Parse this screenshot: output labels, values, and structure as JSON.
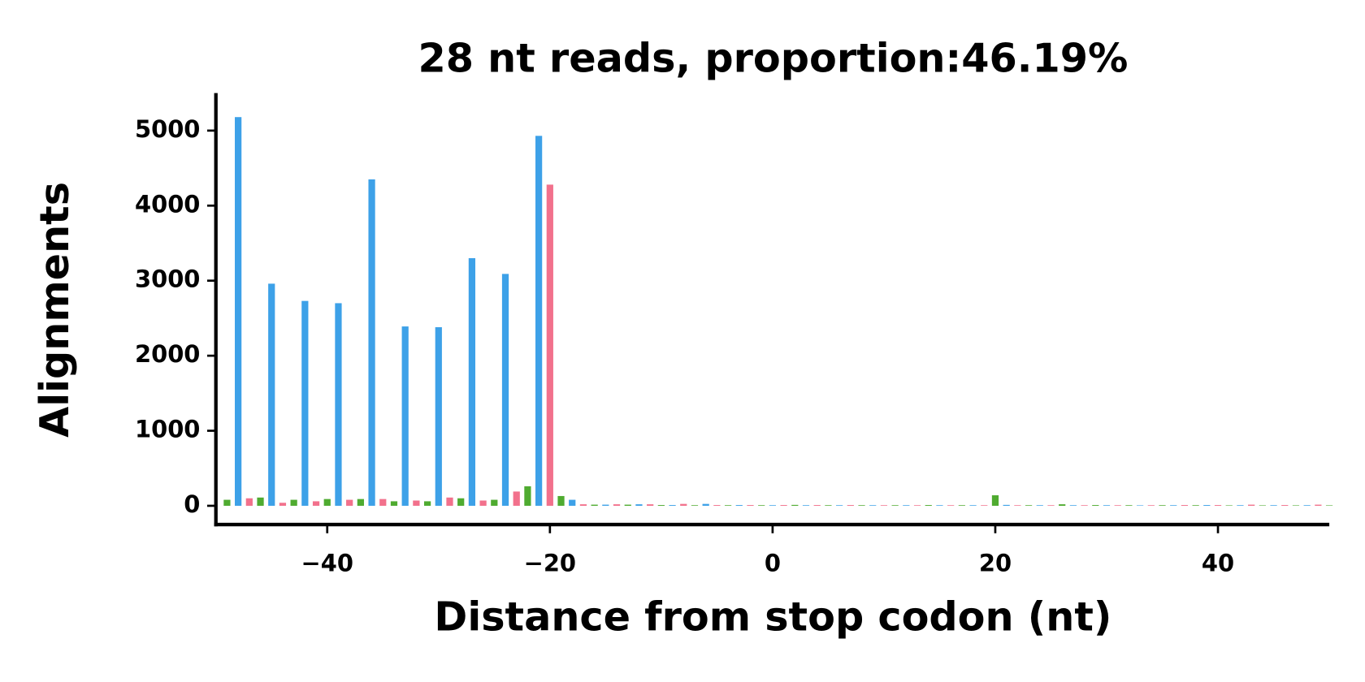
{
  "chart_data": {
    "type": "bar",
    "title": "28 nt reads, proportion:46.19%",
    "xlabel": "Distance from stop codon (nt)",
    "ylabel": "Alignments",
    "xlim": [
      -50,
      50
    ],
    "ylim": [
      -250,
      5500
    ],
    "xticks": [
      {
        "value": -40,
        "label": "−40"
      },
      {
        "value": -20,
        "label": "−20"
      },
      0,
      20,
      40
    ],
    "yticks": [
      0,
      1000,
      2000,
      3000,
      4000,
      5000
    ],
    "grid": false,
    "series": [
      {
        "color": "#3da1e8",
        "x": [
          -48,
          -45,
          -42,
          -39,
          -36,
          -33,
          -30,
          -27,
          -24,
          -21,
          -18,
          -15,
          -12,
          -9,
          -6,
          -3,
          0,
          3,
          6,
          9,
          12,
          15,
          18,
          21,
          24,
          27,
          30,
          33,
          36,
          39,
          42,
          45,
          48
        ],
        "values": [
          5180,
          2960,
          2730,
          2700,
          4350,
          2390,
          2380,
          3300,
          3090,
          4930,
          80,
          15,
          20,
          10,
          25,
          10,
          8,
          8,
          8,
          8,
          8,
          8,
          8,
          12,
          8,
          8,
          8,
          6,
          8,
          10,
          8,
          8,
          8
        ]
      },
      {
        "color": "#f2718c",
        "x": [
          -47,
          -44,
          -41,
          -38,
          -35,
          -32,
          -29,
          -26,
          -23,
          -20,
          -17,
          -14,
          -11,
          -8,
          -5,
          -2,
          1,
          4,
          7,
          10,
          13,
          16,
          19,
          22,
          25,
          28,
          31,
          34,
          37,
          40,
          43,
          46,
          49
        ],
        "values": [
          100,
          40,
          60,
          80,
          90,
          70,
          110,
          70,
          190,
          4280,
          20,
          20,
          20,
          25,
          10,
          10,
          10,
          10,
          10,
          8,
          8,
          8,
          8,
          8,
          8,
          8,
          8,
          8,
          10,
          10,
          15,
          10,
          15
        ]
      },
      {
        "color": "#4fab30",
        "x": [
          -49,
          -46,
          -43,
          -40,
          -37,
          -34,
          -31,
          -28,
          -25,
          -22,
          -19,
          -16,
          -13,
          -10,
          -7,
          -4,
          -1,
          2,
          5,
          8,
          11,
          14,
          17,
          20,
          23,
          26,
          29,
          32,
          35,
          38,
          41,
          44,
          47,
          50
        ],
        "values": [
          80,
          110,
          80,
          90,
          90,
          60,
          60,
          100,
          80,
          260,
          130,
          15,
          15,
          10,
          8,
          8,
          8,
          12,
          8,
          8,
          8,
          10,
          8,
          140,
          8,
          20,
          10,
          8,
          8,
          8,
          6,
          6,
          6,
          6
        ]
      }
    ]
  }
}
